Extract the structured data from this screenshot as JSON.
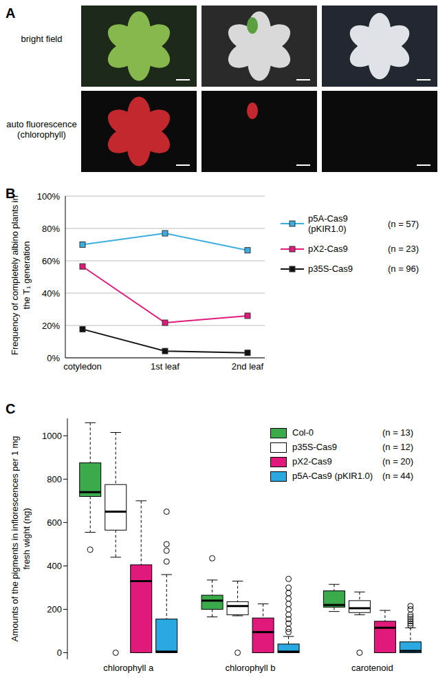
{
  "panel_a": {
    "panel": "A",
    "rows": [
      "bright field",
      "auto fluorescence (chlorophyll)"
    ]
  },
  "chart_data": [
    {
      "panel": "B",
      "type": "line",
      "y_label": "Frequency of completely albino plants in the T₁ generation",
      "categories": [
        "cotyledon",
        "1st leaf",
        "2nd leaf"
      ],
      "ylim": [
        0,
        100
      ],
      "yticks": [
        {
          "value": 0,
          "label": "0%"
        },
        {
          "value": 20,
          "label": "20%"
        },
        {
          "value": 40,
          "label": "40%"
        },
        {
          "value": 60,
          "label": "60%"
        },
        {
          "value": 80,
          "label": "80%"
        },
        {
          "value": 100,
          "label": "100%"
        }
      ],
      "grid": true,
      "marker": "square",
      "series": [
        {
          "name": "p5A-Cas9 (pKIR1.0)",
          "n": "(n = 57)",
          "color": "#3aaee0",
          "values": [
            70,
            77,
            66.5
          ]
        },
        {
          "name": "pX2-Cas9",
          "n": "(n = 23)",
          "color": "#e0197b",
          "values": [
            56.5,
            21.7,
            26
          ]
        },
        {
          "name": "p35S-Cas9",
          "n": "(n = 96)",
          "color": "#111111",
          "values": [
            17.7,
            4.2,
            3.1
          ]
        }
      ]
    },
    {
      "panel": "C",
      "type": "box",
      "y_label": "Amounts of the pigments in inflorescences per 1 mg fresh wight (ng)",
      "categories": [
        "chlorophyll a",
        "chlorophyll b",
        "carotenoid"
      ],
      "ylim": [
        -30,
        1080
      ],
      "yticks": [
        0,
        200,
        400,
        600,
        800,
        1000
      ],
      "series": [
        {
          "name": "Col-0",
          "n": "(n = 13)",
          "color": "#3baa4a",
          "boxes": [
            {
              "min": 555,
              "q1": 720,
              "median": 740,
              "q3": 875,
              "max": 1060,
              "outliers": [
                475
              ]
            },
            {
              "min": 165,
              "q1": 200,
              "median": 240,
              "q3": 265,
              "max": 335,
              "outliers": [
                435
              ]
            },
            {
              "min": 190,
              "q1": 210,
              "median": 220,
              "q3": 285,
              "max": 315,
              "outliers": []
            }
          ]
        },
        {
          "name": "p35S-Cas9",
          "n": "(n = 12)",
          "color": "#ffffff",
          "boxes": [
            {
              "min": 440,
              "q1": 565,
              "median": 650,
              "q3": 775,
              "max": 1015,
              "outliers": [
                0
              ]
            },
            {
              "min": 170,
              "q1": 175,
              "median": 215,
              "q3": 235,
              "max": 330,
              "outliers": [
                0
              ]
            },
            {
              "min": 175,
              "q1": 185,
              "median": 205,
              "q3": 240,
              "max": 280,
              "outliers": [
                0
              ]
            }
          ]
        },
        {
          "name": "pX2-Cas9",
          "n": "(n = 20)",
          "color": "#e0197b",
          "boxes": [
            {
              "min": 0,
              "q1": 0,
              "median": 330,
              "q3": 405,
              "max": 700,
              "outliers": []
            },
            {
              "min": 0,
              "q1": 0,
              "median": 95,
              "q3": 160,
              "max": 225,
              "outliers": []
            },
            {
              "min": 0,
              "q1": 0,
              "median": 115,
              "q3": 145,
              "max": 195,
              "outliers": []
            }
          ]
        },
        {
          "name": "p5A-Cas9 (pKIR1.0)",
          "n": "(n = 44)",
          "color": "#29a9e0",
          "boxes": [
            {
              "min": 0,
              "q1": 0,
              "median": 5,
              "q3": 155,
              "max": 360,
              "outliers": [
                420,
                470,
                500,
                650
              ]
            },
            {
              "min": 0,
              "q1": 0,
              "median": 5,
              "q3": 40,
              "max": 75,
              "outliers": [
                95,
                110,
                135,
                155,
                175,
                200,
                225,
                250,
                275,
                300,
                340
              ]
            },
            {
              "min": 0,
              "q1": 0,
              "median": 8,
              "q3": 50,
              "max": 115,
              "outliers": [
                125,
                135,
                145,
                155,
                165,
                175,
                200,
                215
              ]
            }
          ]
        }
      ]
    }
  ]
}
